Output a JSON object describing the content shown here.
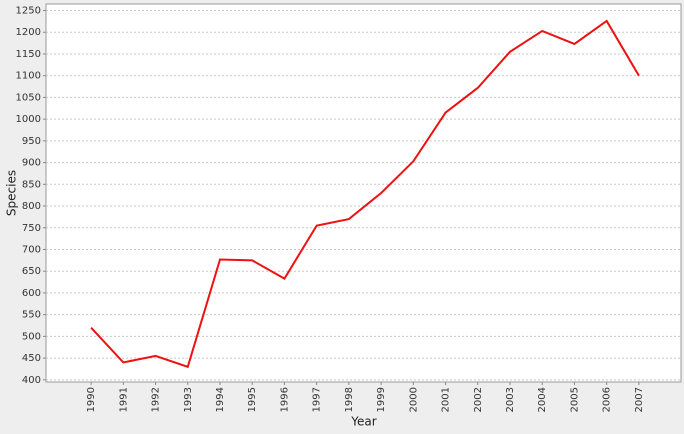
{
  "chart_data": {
    "type": "line",
    "x_label": "Year",
    "y_label": "Species",
    "categories": [
      "1990",
      "1991",
      "1992",
      "1993",
      "1994",
      "1995",
      "1996",
      "1997",
      "1998",
      "1999",
      "2000",
      "2001",
      "2002",
      "2003",
      "2004",
      "2005",
      "2006",
      "2007"
    ],
    "series": [
      {
        "name": "Species",
        "color": "#ee1111",
        "values": [
          520,
          440,
          455,
          430,
          677,
          675,
          633,
          755,
          770,
          830,
          903,
          1015,
          1072,
          1155,
          1203,
          1173,
          1226,
          1100
        ]
      }
    ],
    "ylim": [
      395,
      1265
    ],
    "yticks": [
      400,
      450,
      500,
      550,
      600,
      650,
      700,
      750,
      800,
      850,
      900,
      950,
      1000,
      1050,
      1100,
      1150,
      1200,
      1250
    ],
    "grid": true
  }
}
